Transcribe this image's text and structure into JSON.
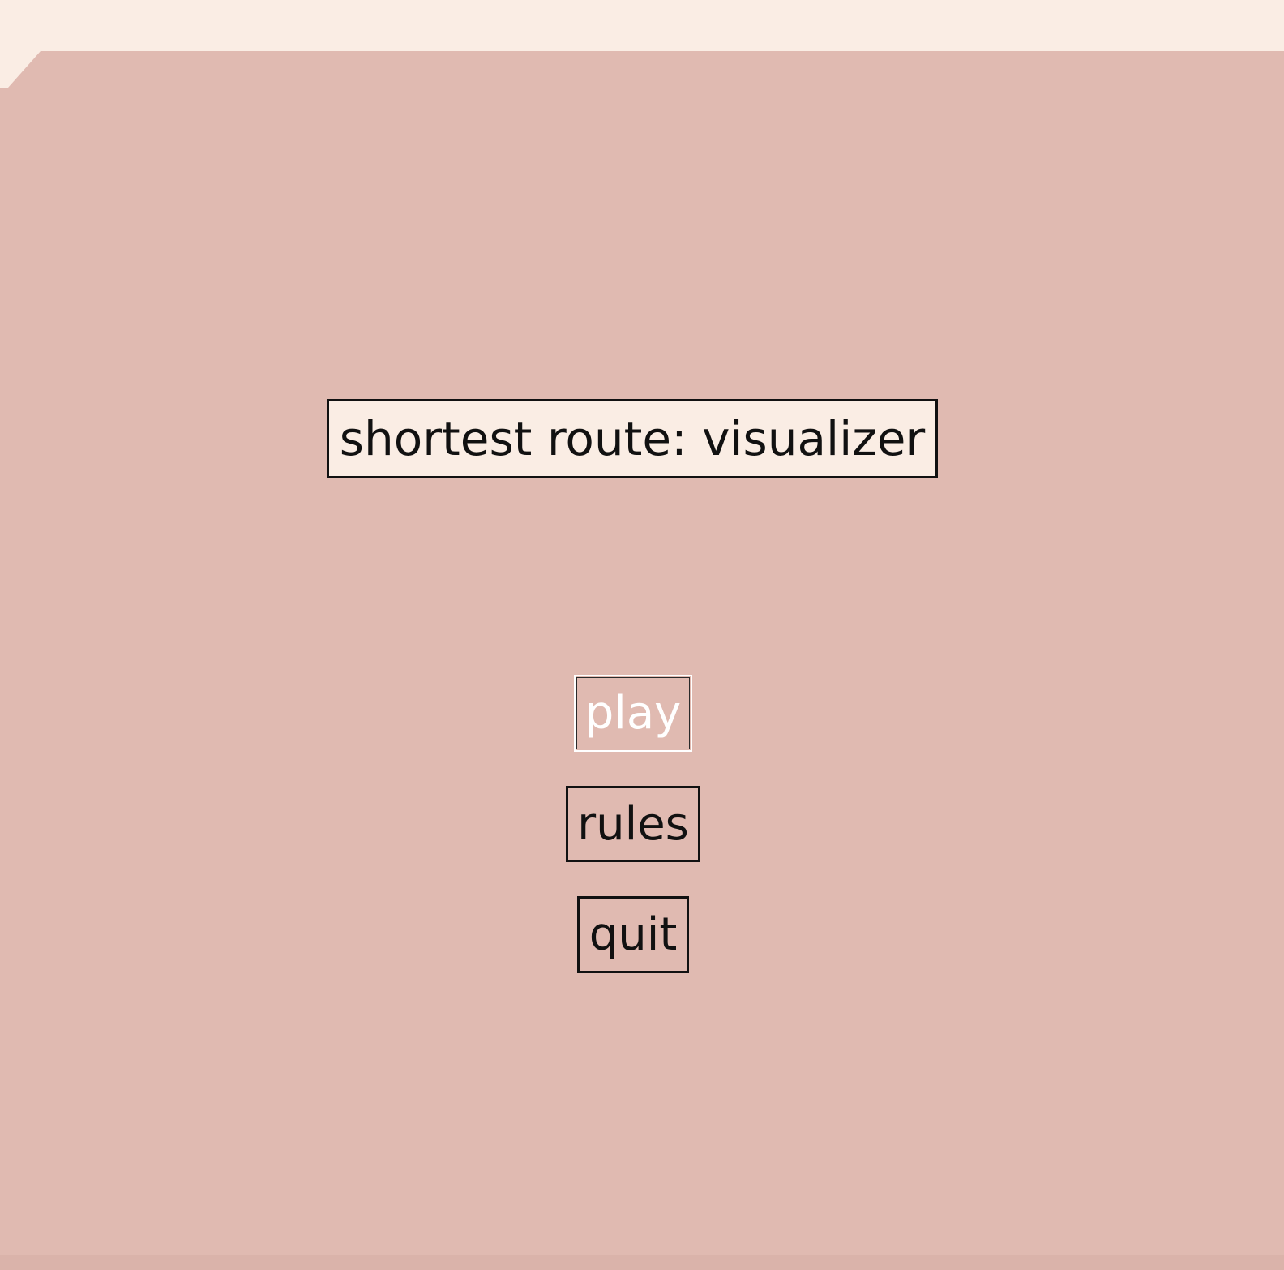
{
  "menu": {
    "title": "shortest route: visualizer",
    "buttons": {
      "play": "play",
      "rules": "rules",
      "quit": "quit"
    }
  },
  "colors": {
    "background": "#e0bab1",
    "top_strip": "#faede4",
    "title_box_fill": "#faede4",
    "text_dark": "#111111",
    "highlighted_text": "#ffffff"
  }
}
